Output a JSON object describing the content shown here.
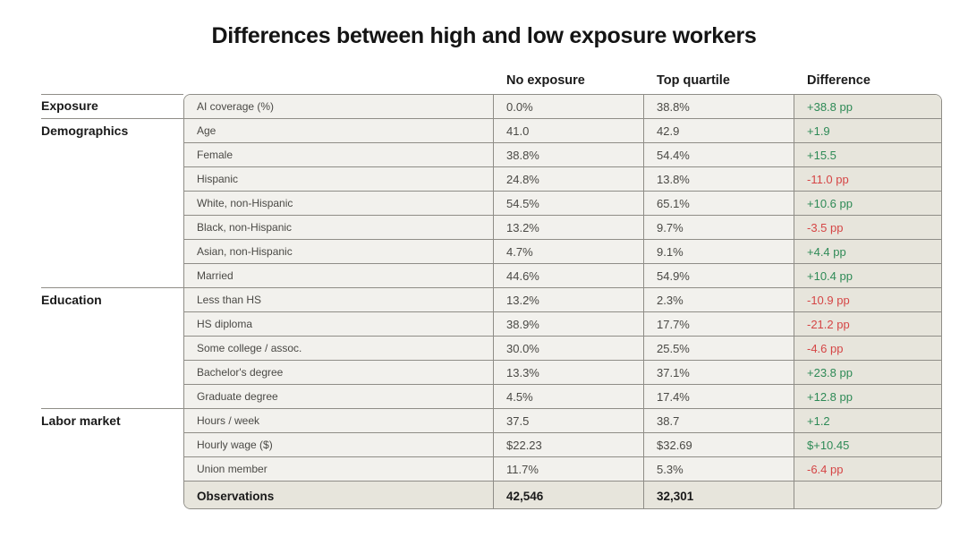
{
  "title": "Differences between high and low exposure workers",
  "columns": {
    "no_exposure": "No exposure",
    "top_quartile": "Top quartile",
    "difference": "Difference"
  },
  "sections": [
    {
      "label": "Exposure"
    },
    {
      "label": "Demographics"
    },
    {
      "label": "Education"
    },
    {
      "label": "Labor market"
    }
  ],
  "rows": [
    {
      "label": "AI coverage (%)",
      "no_exposure": "0.0%",
      "top_quartile": "38.8%",
      "difference": "+38.8 pp",
      "sign": "pos"
    },
    {
      "label": "Age",
      "no_exposure": "41.0",
      "top_quartile": "42.9",
      "difference": "+1.9",
      "sign": "pos"
    },
    {
      "label": "Female",
      "no_exposure": "38.8%",
      "top_quartile": "54.4%",
      "difference": "+15.5",
      "sign": "pos"
    },
    {
      "label": "Hispanic",
      "no_exposure": "24.8%",
      "top_quartile": "13.8%",
      "difference": "-11.0 pp",
      "sign": "neg"
    },
    {
      "label": "White, non-Hispanic",
      "no_exposure": "54.5%",
      "top_quartile": "65.1%",
      "difference": "+10.6 pp",
      "sign": "pos"
    },
    {
      "label": "Black, non-Hispanic",
      "no_exposure": "13.2%",
      "top_quartile": "9.7%",
      "difference": "-3.5 pp",
      "sign": "neg"
    },
    {
      "label": "Asian, non-Hispanic",
      "no_exposure": "4.7%",
      "top_quartile": "9.1%",
      "difference": "+4.4 pp",
      "sign": "pos"
    },
    {
      "label": "Married",
      "no_exposure": "44.6%",
      "top_quartile": "54.9%",
      "difference": "+10.4 pp",
      "sign": "pos"
    },
    {
      "label": "Less than HS",
      "no_exposure": "13.2%",
      "top_quartile": "2.3%",
      "difference": "-10.9 pp",
      "sign": "neg"
    },
    {
      "label": "HS diploma",
      "no_exposure": "38.9%",
      "top_quartile": "17.7%",
      "difference": "-21.2 pp",
      "sign": "neg"
    },
    {
      "label": "Some college / assoc.",
      "no_exposure": "30.0%",
      "top_quartile": "25.5%",
      "difference": "-4.6 pp",
      "sign": "neg"
    },
    {
      "label": "Bachelor's degree",
      "no_exposure": "13.3%",
      "top_quartile": "37.1%",
      "difference": "+23.8 pp",
      "sign": "pos"
    },
    {
      "label": "Graduate degree",
      "no_exposure": "4.5%",
      "top_quartile": "17.4%",
      "difference": "+12.8 pp",
      "sign": "pos"
    },
    {
      "label": "Hours / week",
      "no_exposure": "37.5",
      "top_quartile": "38.7",
      "difference": "+1.2",
      "sign": "pos"
    },
    {
      "label": "Hourly wage ($)",
      "no_exposure": "$22.23",
      "top_quartile": "$32.69",
      "difference": "$+10.45",
      "sign": "pos"
    },
    {
      "label": "Union member",
      "no_exposure": "11.7%",
      "top_quartile": "5.3%",
      "difference": "-6.4 pp",
      "sign": "neg"
    }
  ],
  "observations": {
    "label": "Observations",
    "no_exposure": "42,546",
    "top_quartile": "32,301",
    "difference": ""
  },
  "colors": {
    "positive": "#2e8a56",
    "negative": "#d54545",
    "row_bg": "#f2f1ed",
    "highlight_bg": "#e7e5dc",
    "border": "#8f8d87"
  }
}
